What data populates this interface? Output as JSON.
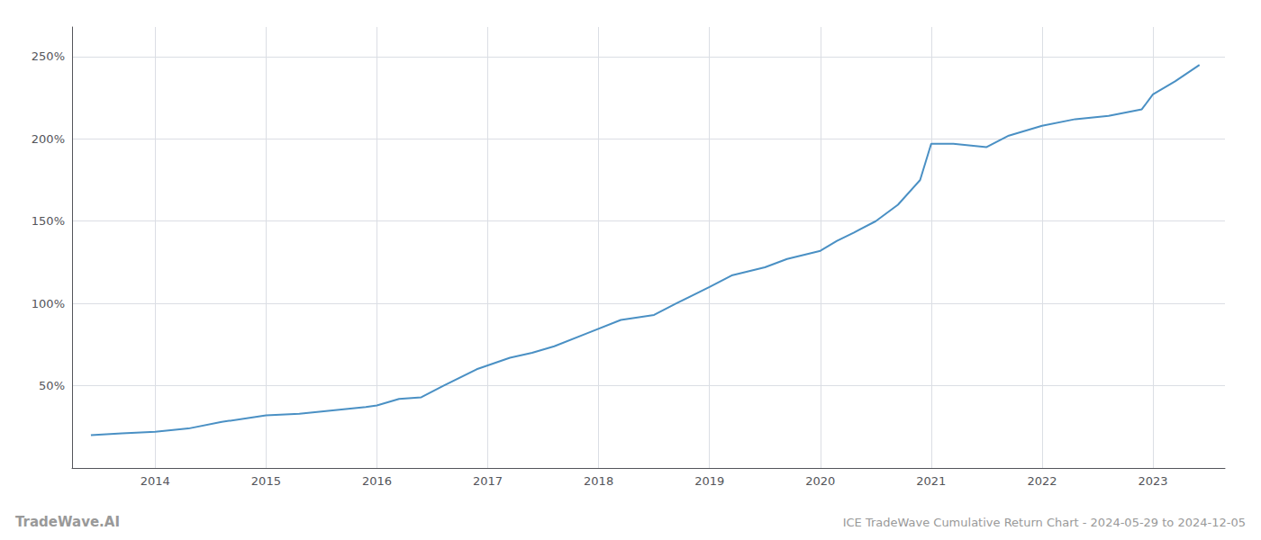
{
  "chart_data": {
    "type": "line",
    "title": "ICE TradeWave Cumulative Return Chart - 2024-05-29 to 2024-12-05",
    "annotations": [
      "TradeWave.AI"
    ],
    "x": [
      2013.42,
      2013.7,
      2014.0,
      2014.3,
      2014.6,
      2015.0,
      2015.3,
      2015.6,
      2015.9,
      2016.0,
      2016.2,
      2016.4,
      2016.6,
      2016.9,
      2017.2,
      2017.4,
      2017.6,
      2017.9,
      2018.2,
      2018.5,
      2018.7,
      2019.0,
      2019.2,
      2019.5,
      2019.7,
      2020.0,
      2020.15,
      2020.3,
      2020.5,
      2020.7,
      2020.9,
      2021.0,
      2021.2,
      2021.5,
      2021.7,
      2022.0,
      2022.3,
      2022.6,
      2022.9,
      2023.0,
      2023.2,
      2023.42
    ],
    "values": [
      20,
      21,
      22,
      24,
      28,
      32,
      33,
      35,
      37,
      38,
      42,
      43,
      50,
      60,
      67,
      70,
      74,
      82,
      90,
      93,
      100,
      110,
      117,
      122,
      127,
      132,
      138,
      143,
      150,
      160,
      175,
      197,
      197,
      195,
      202,
      208,
      212,
      214,
      218,
      227,
      235,
      245
    ],
    "color": "#4a90c4",
    "xlim": [
      2013.25,
      2023.65
    ],
    "xticks": [
      2014,
      2015,
      2016,
      2017,
      2018,
      2019,
      2020,
      2021,
      2022,
      2023
    ],
    "ylim": [
      0,
      268
    ],
    "yticks": [
      {
        "value": 50,
        "label": "50%"
      },
      {
        "value": 100,
        "label": "100%"
      },
      {
        "value": 150,
        "label": "150%"
      },
      {
        "value": 200,
        "label": "200%"
      },
      {
        "value": 250,
        "label": "250%"
      }
    ],
    "grid": true
  }
}
